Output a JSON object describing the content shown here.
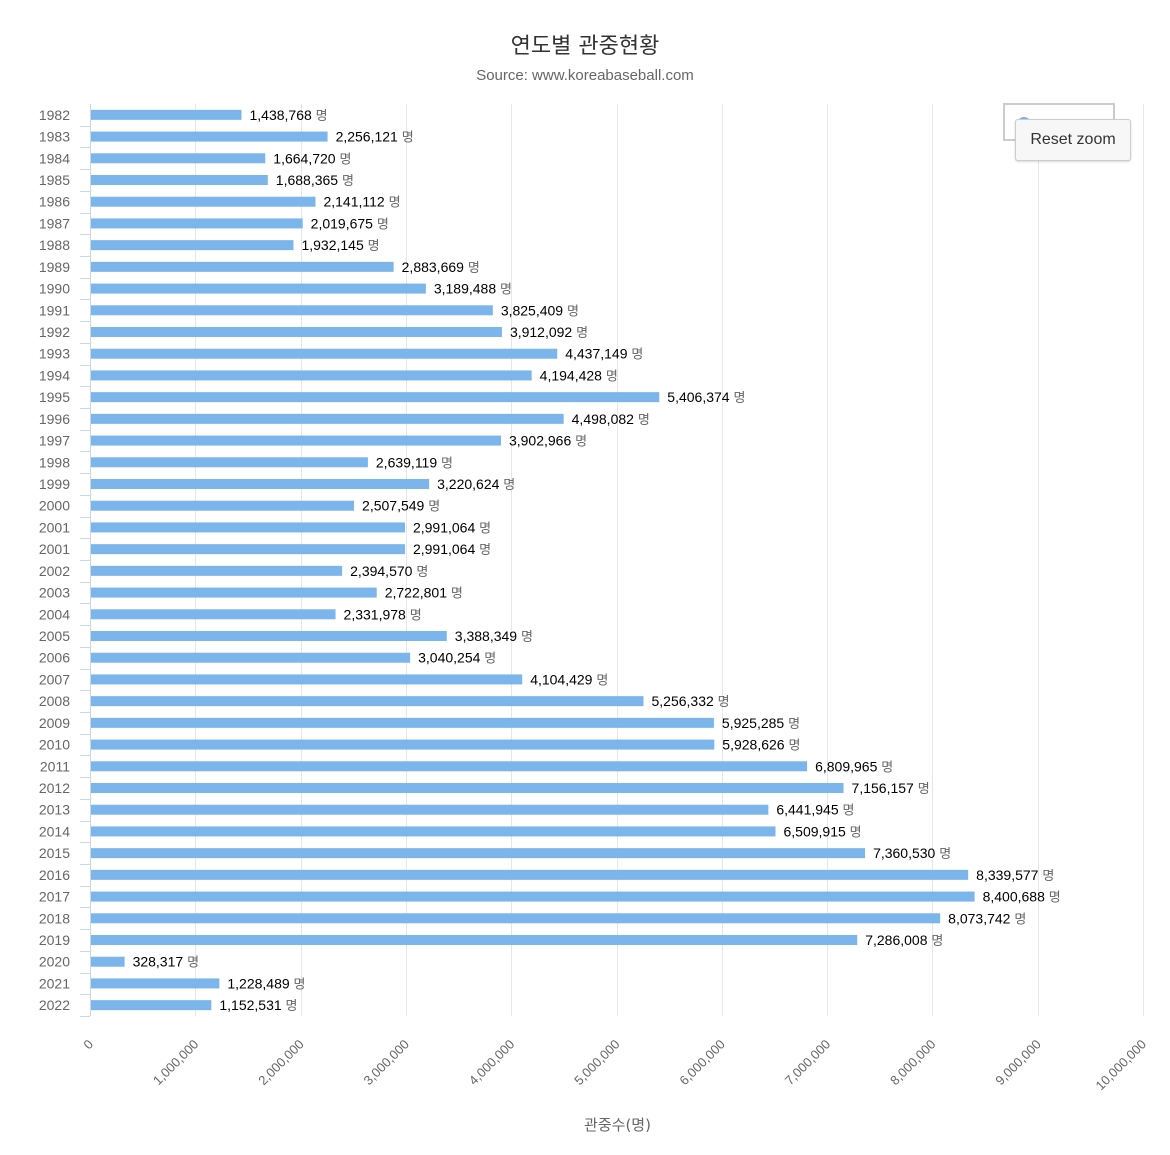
{
  "chart_data": {
    "type": "bar",
    "orientation": "horizontal",
    "title": "연도별 관중현황",
    "subtitle": "Source: www.koreabaseball.com",
    "xlabel": "관중수(명)",
    "ylabel": "",
    "xlim": [
      0,
      10000000
    ],
    "x_ticks": [
      "0",
      "1,000,000",
      "2,000,000",
      "3,000,000",
      "4,000,000",
      "5,000,000",
      "6,000,000",
      "7,000,000",
      "8,000,000",
      "9,000,000",
      "10,000,000"
    ],
    "value_suffix": "명",
    "grid": true,
    "legend_position": "top-right",
    "bar_color": "#7cb5ec",
    "categories": [
      "1982",
      "1983",
      "1984",
      "1985",
      "1986",
      "1987",
      "1988",
      "1989",
      "1990",
      "1991",
      "1992",
      "1993",
      "1994",
      "1995",
      "1996",
      "1997",
      "1998",
      "1999",
      "2000",
      "2001",
      "2001",
      "2002",
      "2003",
      "2004",
      "2005",
      "2006",
      "2007",
      "2008",
      "2009",
      "2010",
      "2011",
      "2012",
      "2013",
      "2014",
      "2015",
      "2016",
      "2017",
      "2018",
      "2019",
      "2020",
      "2021",
      "2022"
    ],
    "values": [
      1438768,
      2256121,
      1664720,
      1688365,
      2141112,
      2019675,
      1932145,
      2883669,
      3189488,
      3825409,
      3912092,
      4437149,
      4194428,
      5406374,
      4498082,
      3902966,
      2639119,
      3220624,
      2507549,
      2991064,
      2991064,
      2394570,
      2722801,
      2331978,
      3388349,
      3040254,
      4104429,
      5256332,
      5925285,
      5928626,
      6809965,
      7156157,
      6441945,
      6509915,
      7360530,
      8339577,
      8400688,
      8073742,
      7286008,
      328317,
      1228489,
      1152531
    ]
  },
  "reset_zoom_label": "Reset zoom"
}
